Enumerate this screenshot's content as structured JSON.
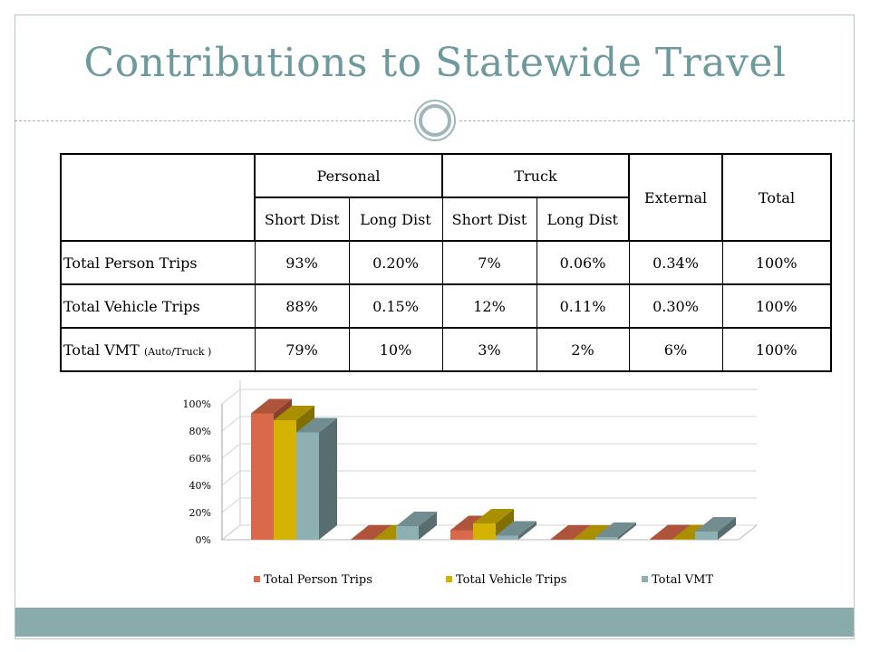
{
  "title": "Contributions to Statewide Travel",
  "table": {
    "group_headers": [
      "Personal",
      "Truck",
      "External",
      "Total"
    ],
    "sub_headers": [
      "Short Dist",
      "Long Dist",
      "Short Dist",
      "Long Dist"
    ],
    "rows": [
      {
        "label": "Total Person Trips",
        "note": "",
        "values": [
          "93%",
          "0.20%",
          "7%",
          "0.06%",
          "0.34%",
          "100%"
        ]
      },
      {
        "label": "Total Vehicle Trips",
        "note": "",
        "values": [
          "88%",
          "0.15%",
          "12%",
          "0.11%",
          "0.30%",
          "100%"
        ]
      },
      {
        "label": "Total VMT ",
        "note": "(Auto/Truck )",
        "values": [
          "79%",
          "10%",
          "3%",
          "2%",
          "6%",
          "100%"
        ]
      }
    ]
  },
  "chart_data": {
    "type": "bar",
    "categories": [
      "Personal Short Dist",
      "Personal Long Dist",
      "Truck Short Dist",
      "Truck Long Dist",
      "External"
    ],
    "category_labels_shown": false,
    "series": [
      {
        "name": "Total Person Trips",
        "color": "#d9694a",
        "values": [
          93,
          0.2,
          7,
          0.06,
          0.34
        ]
      },
      {
        "name": "Total Vehicle Trips",
        "color": "#d4b300",
        "values": [
          88,
          0.15,
          12,
          0.11,
          0.3
        ]
      },
      {
        "name": "Total VMT",
        "color": "#8eb0b3",
        "values": [
          79,
          10,
          3,
          2,
          6
        ]
      }
    ],
    "y_ticks": [
      "0%",
      "20%",
      "40%",
      "60%",
      "80%",
      "100%"
    ],
    "ylim": [
      0,
      100
    ],
    "grid": true,
    "legend": "bottom",
    "style": "3d-clustered-column"
  },
  "colors": {
    "title": "#6e9a9d",
    "accent_bar": "#8aabac"
  }
}
